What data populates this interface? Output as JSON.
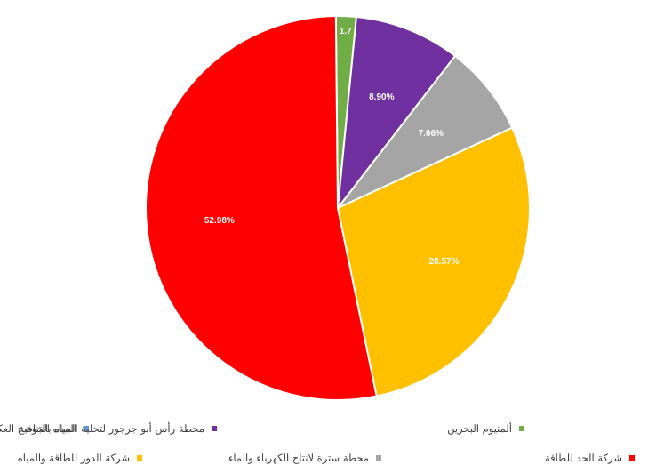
{
  "chart_data": {
    "type": "pie",
    "series": [
      {
        "name": "المياه الجوفية",
        "value": 0.0,
        "label": "",
        "color": "#5b9bd5"
      },
      {
        "name": "ألمنيوم البحرين",
        "value": 1.7,
        "label": "1.7",
        "color": "#70ad47"
      },
      {
        "name": "محطة رأس أبو جرجور لتحلية المياه بالتناضح العكسي",
        "value": 8.9,
        "label": "8.90%",
        "color": "#7030a0"
      },
      {
        "name": "محطة سترة لانتاج الكهرباء والماء",
        "value": 7.66,
        "label": "7.66%",
        "color": "#a5a5a5"
      },
      {
        "name": "شركة الدور للطاقة والمياه",
        "value": 28.57,
        "label": "28.57%",
        "color": "#ffc000"
      },
      {
        "name": "شركة الحد للطاقة",
        "value": 52.98,
        "label": "52.98%",
        "color": "#ff0000"
      }
    ],
    "legend_position": "bottom"
  },
  "legend": [
    {
      "label": "المياه الجوفية",
      "color": "#5b9bd5"
    },
    {
      "label": "محطة رأس أبو جرجور لتحلية المياه بالتناضح العكسي",
      "color": "#7030a0"
    },
    {
      "label": "ألمنيوم البحرين",
      "color": "#70ad47"
    },
    {
      "label": "شركة الدور للطاقة والمياه",
      "color": "#ffc000"
    },
    {
      "label": "محطة سترة لانتاج الكهرباء والماء",
      "color": "#a5a5a5"
    },
    {
      "label": "شركة الحد للطاقة",
      "color": "#ff0000"
    }
  ]
}
